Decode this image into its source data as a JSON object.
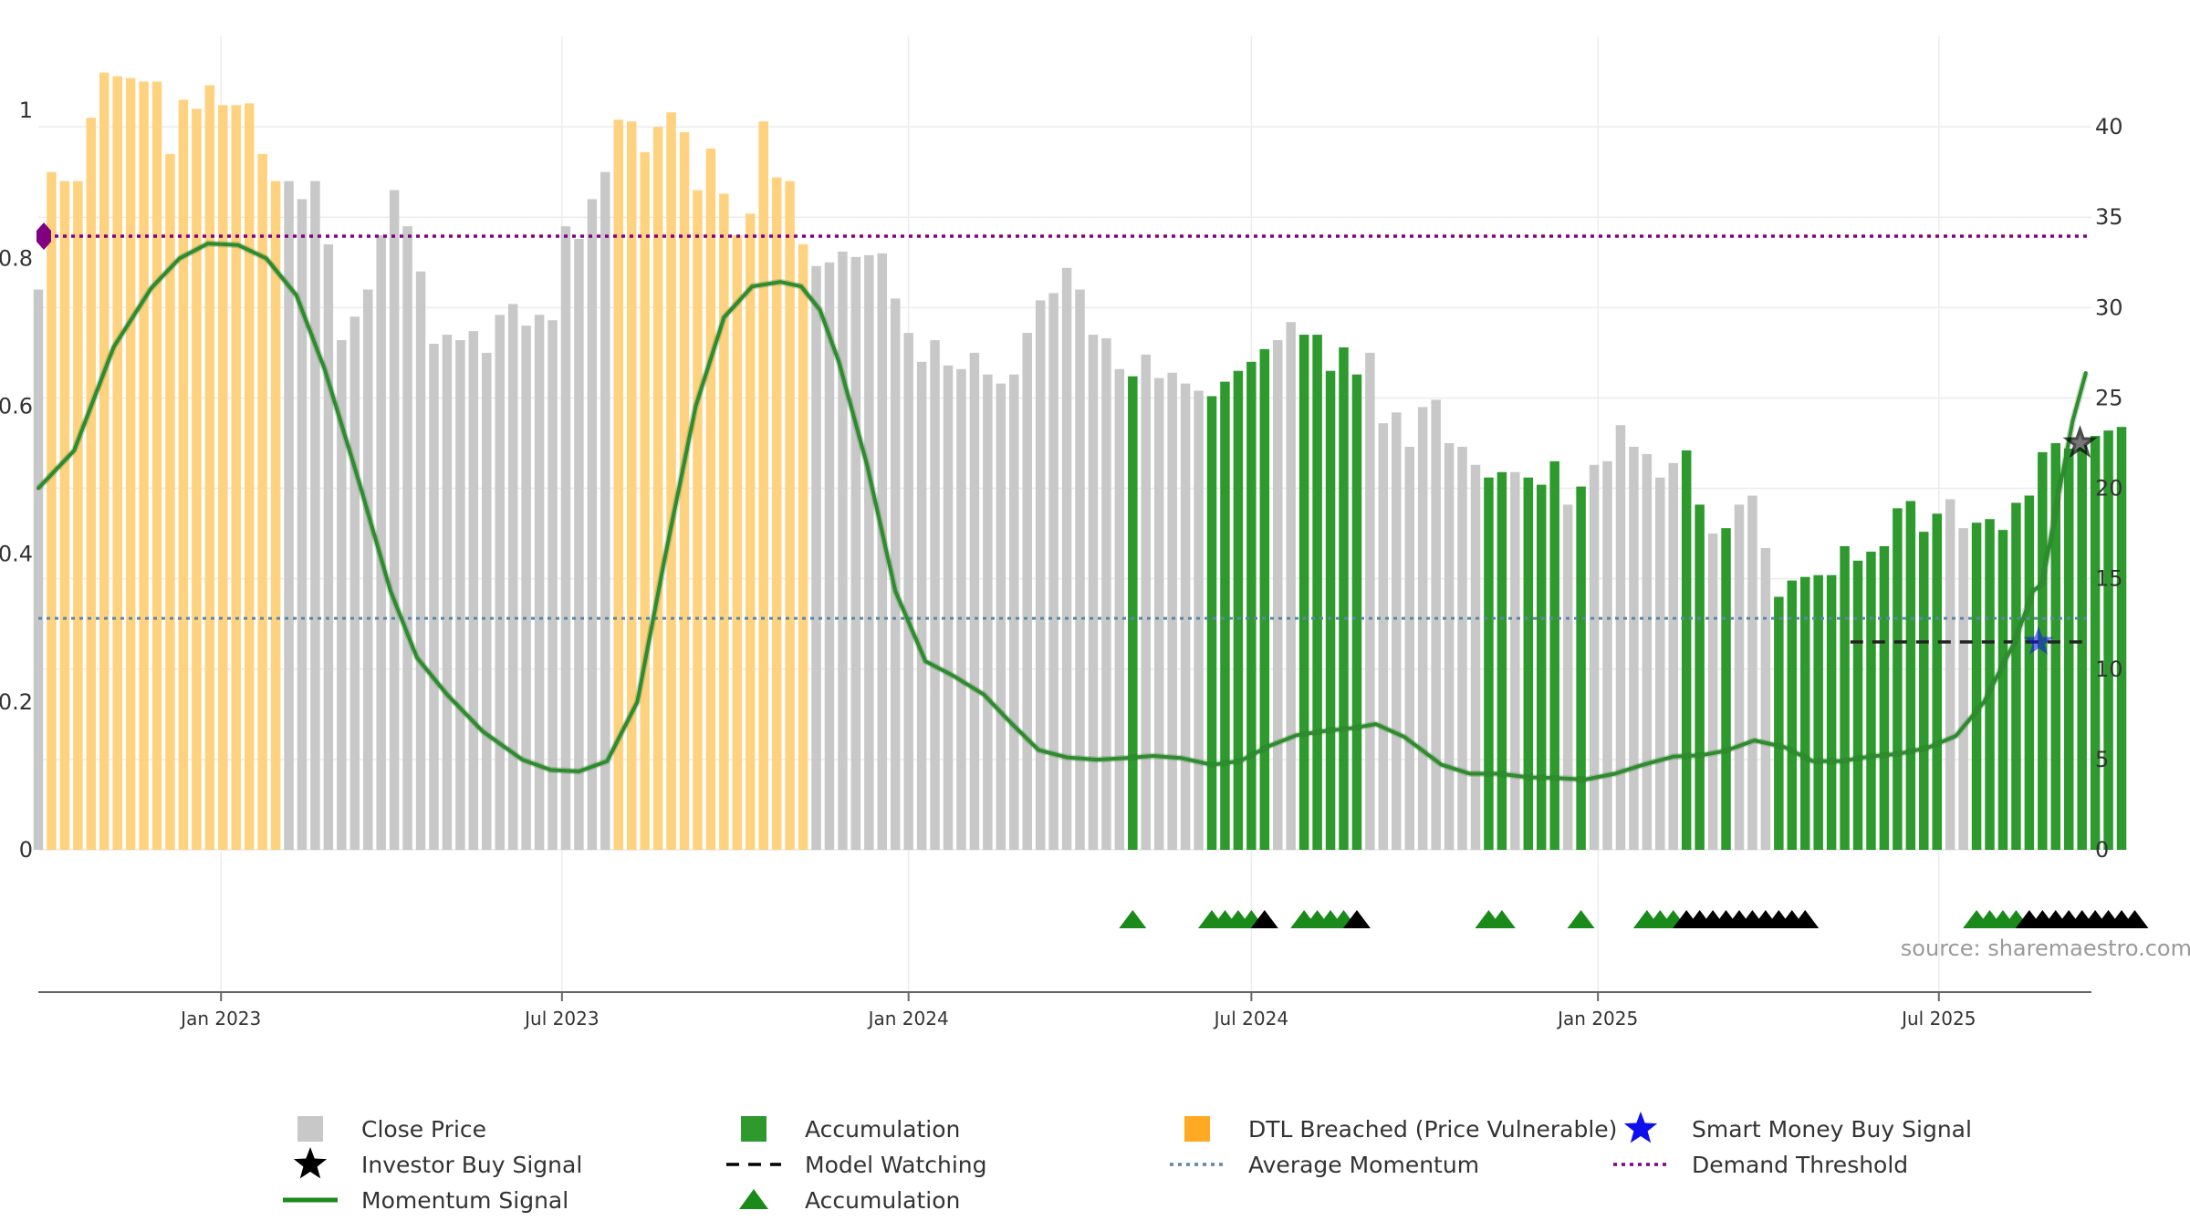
{
  "chart_data": {
    "type": "bar",
    "source": "source: sharemaestro.com",
    "left_axis": {
      "ticks": [
        0,
        0.2,
        0.4,
        0.6,
        0.8,
        1
      ],
      "tick_labels": [
        "0",
        "0.2",
        "0.4",
        "0.6",
        "0.8",
        "1"
      ],
      "range": [
        0,
        1.1
      ]
    },
    "right_axis": {
      "ticks": [
        0,
        5,
        10,
        15,
        20,
        25,
        30,
        35,
        40
      ],
      "tick_labels": [
        "0",
        "5",
        "10",
        "15",
        "20",
        "25",
        "30",
        "35",
        "40"
      ],
      "range": [
        0,
        45
      ]
    },
    "x_axis": {
      "start": "2022-09-26",
      "end": "2025-09-20",
      "tick_dates": [
        "2023-01-01",
        "2023-07-01",
        "2024-01-01",
        "2024-07-01",
        "2025-01-01",
        "2025-07-01"
      ],
      "tick_labels": [
        "Jan 2023",
        "Jul 2023",
        "Jan 2024",
        "Jul 2024",
        "Jan 2025",
        "Jul 2025"
      ]
    },
    "series": [
      {
        "name": "Close Price",
        "first_week": "2022-09-26",
        "interval_days": 7,
        "values": [
          31,
          37.5,
          37,
          37,
          40.5,
          43,
          42.8,
          42.7,
          42.5,
          42.5,
          38.5,
          41.5,
          41,
          42.3,
          41.2,
          41.2,
          41.3,
          38.5,
          37,
          37,
          36,
          37,
          33.5,
          28.2,
          29.5,
          31,
          34,
          36.5,
          34.5,
          32,
          28,
          28.5,
          28.2,
          28.7,
          27.5,
          29.6,
          30.2,
          29,
          29.6,
          29.3,
          34.5,
          33.8,
          36,
          37.5,
          40.4,
          40.3,
          38.6,
          40,
          40.8,
          39.7,
          36.5,
          38.8,
          36.3,
          34,
          35.2,
          40.3,
          37.2,
          37,
          33.5,
          32.3,
          32.5,
          33.1,
          32.8,
          32.9,
          33,
          30.5,
          28.6,
          27,
          28.2,
          26.8,
          26.6,
          27.5,
          26.3,
          25.8,
          26.3,
          28.6,
          30.4,
          30.8,
          32.2,
          31,
          28.5,
          28.3,
          26.6,
          26.2,
          27.4,
          26.1,
          26.4,
          25.8,
          25.4,
          25.1,
          25.9,
          26.5,
          27,
          27.7,
          28.2,
          29.2,
          28.5,
          28.5,
          26.5,
          27.8,
          26.3,
          27.5,
          23.6,
          24.2,
          22.3,
          24.5,
          24.9,
          22.5,
          22.3,
          21.3,
          20.6,
          20.9,
          20.9,
          20.6,
          20.2,
          21.5,
          19.1,
          20.1,
          21.3,
          21.5,
          23.5,
          22.3,
          21.9,
          20.6,
          21.4,
          22.1,
          19.1,
          17.5,
          17.8,
          19.1,
          19.6,
          16.7,
          14,
          14.9,
          15.1,
          15.2,
          15.2,
          16.8,
          16,
          16.5,
          16.8,
          18.9,
          19.3,
          17.6,
          18.6,
          19.4,
          17.8,
          18.1,
          18.3,
          17.7,
          19.2,
          19.6,
          22,
          22.5,
          22.2,
          22.4,
          22.9,
          23.2,
          23.4
        ]
      },
      {
        "name": "Accumulation",
        "weeks": [
          83,
          89,
          90,
          91,
          92,
          93,
          96,
          97,
          98,
          99,
          100,
          110,
          111,
          113,
          114,
          115,
          117,
          125,
          126,
          128,
          132,
          133,
          134,
          135,
          136,
          137,
          138,
          139,
          140,
          141,
          142,
          143,
          144,
          147,
          148,
          149,
          150,
          151,
          152,
          153,
          154,
          155,
          156,
          157,
          158,
          159
        ]
      },
      {
        "name": "DTL Breached (Price Vulnerable)",
        "weeks": [
          1,
          2,
          3,
          4,
          5,
          6,
          7,
          8,
          9,
          10,
          11,
          12,
          13,
          14,
          15,
          16,
          17,
          18,
          44,
          45,
          46,
          47,
          48,
          49,
          50,
          51,
          52,
          53,
          54,
          55,
          56,
          57,
          58
        ]
      },
      {
        "name": "Momentum Signal",
        "points": [
          [
            "2022-09-26",
            0.489
          ],
          [
            "2022-10-15",
            0.54
          ],
          [
            "2022-11-05",
            0.68
          ],
          [
            "2022-11-25",
            0.76
          ],
          [
            "2022-12-10",
            0.8
          ],
          [
            "2022-12-25",
            0.82
          ],
          [
            "2023-01-10",
            0.818
          ],
          [
            "2023-01-25",
            0.8
          ],
          [
            "2023-02-10",
            0.75
          ],
          [
            "2023-02-25",
            0.65
          ],
          [
            "2023-03-15",
            0.5
          ],
          [
            "2023-04-01",
            0.35
          ],
          [
            "2023-04-15",
            0.26
          ],
          [
            "2023-05-01",
            0.21
          ],
          [
            "2023-05-20",
            0.16
          ],
          [
            "2023-06-10",
            0.122
          ],
          [
            "2023-06-25",
            0.108
          ],
          [
            "2023-07-10",
            0.106
          ],
          [
            "2023-07-25",
            0.12
          ],
          [
            "2023-08-10",
            0.2
          ],
          [
            "2023-08-25",
            0.4
          ],
          [
            "2023-09-10",
            0.6
          ],
          [
            "2023-09-25",
            0.72
          ],
          [
            "2023-10-10",
            0.762
          ],
          [
            "2023-10-25",
            0.768
          ],
          [
            "2023-11-05",
            0.762
          ],
          [
            "2023-11-15",
            0.73
          ],
          [
            "2023-11-25",
            0.66
          ],
          [
            "2023-12-10",
            0.52
          ],
          [
            "2023-12-25",
            0.35
          ],
          [
            "2024-01-10",
            0.255
          ],
          [
            "2024-01-25",
            0.235
          ],
          [
            "2024-02-10",
            0.21
          ],
          [
            "2024-02-25",
            0.17
          ],
          [
            "2024-03-10",
            0.135
          ],
          [
            "2024-03-25",
            0.125
          ],
          [
            "2024-04-10",
            0.122
          ],
          [
            "2024-04-25",
            0.124
          ],
          [
            "2024-05-10",
            0.127
          ],
          [
            "2024-05-25",
            0.124
          ],
          [
            "2024-06-10",
            0.115
          ],
          [
            "2024-06-25",
            0.12
          ],
          [
            "2024-07-10",
            0.14
          ],
          [
            "2024-07-25",
            0.155
          ],
          [
            "2024-08-10",
            0.161
          ],
          [
            "2024-08-25",
            0.165
          ],
          [
            "2024-09-05",
            0.17
          ],
          [
            "2024-09-20",
            0.153
          ],
          [
            "2024-10-10",
            0.115
          ],
          [
            "2024-10-25",
            0.103
          ],
          [
            "2024-11-10",
            0.103
          ],
          [
            "2024-11-25",
            0.098
          ],
          [
            "2024-12-10",
            0.097
          ],
          [
            "2024-12-25",
            0.095
          ],
          [
            "2025-01-10",
            0.103
          ],
          [
            "2025-01-25",
            0.115
          ],
          [
            "2025-02-10",
            0.126
          ],
          [
            "2025-02-25",
            0.128
          ],
          [
            "2025-03-10",
            0.134
          ],
          [
            "2025-03-25",
            0.148
          ],
          [
            "2025-04-10",
            0.139
          ],
          [
            "2025-04-25",
            0.12
          ],
          [
            "2025-05-10",
            0.12
          ],
          [
            "2025-05-25",
            0.126
          ],
          [
            "2025-06-10",
            0.13
          ],
          [
            "2025-06-25",
            0.138
          ],
          [
            "2025-07-10",
            0.154
          ],
          [
            "2025-07-25",
            0.2
          ],
          [
            "2025-08-10",
            0.28
          ],
          [
            "2025-08-20",
            0.35
          ],
          [
            "2025-08-25",
            0.36
          ],
          [
            "2025-09-01",
            0.46
          ],
          [
            "2025-09-10",
            0.58
          ],
          [
            "2025-09-17",
            0.645
          ]
        ]
      },
      {
        "name": "Average Momentum",
        "value": 0.313
      },
      {
        "name": "Demand Threshold",
        "value": 0.83
      },
      {
        "name": "Model Watching",
        "value": 11.5,
        "from": "2025-05-15",
        "to": "2025-09-17"
      },
      {
        "name": "Smart Money Buy Signal",
        "date": "2025-08-20",
        "value": 11.5
      },
      {
        "name": "Investor Buy Signal",
        "date": "2025-09-12",
        "value": 22.5
      },
      {
        "name": "Accumulation",
        "marker": "triangle",
        "green_weeks": [
          83,
          89,
          90,
          91,
          92,
          96,
          97,
          98,
          99,
          110,
          111,
          117,
          122,
          123,
          124,
          147,
          148,
          149,
          150
        ],
        "black_weeks": [
          93,
          100,
          125,
          126,
          127,
          128,
          129,
          130,
          131,
          132,
          133,
          134,
          151,
          152,
          153,
          154,
          155,
          156,
          157,
          158,
          159
        ]
      }
    ],
    "start_marker": {
      "date": "2022-09-26",
      "value": 0.83
    },
    "legend": [
      [
        "Close Price",
        "Accumulation",
        "DTL Breached (Price Vulnerable)",
        "Smart Money Buy Signal"
      ],
      [
        "Investor Buy Signal",
        "Model Watching",
        "Average Momentum",
        "Demand Threshold"
      ],
      [
        "Momentum Signal",
        "Accumulation"
      ]
    ],
    "colors": {
      "close": "#c8c8c8",
      "accumulation": "#2e9a2e",
      "dtl": "#ffd27f",
      "momentum": "#2e8b2e",
      "avg": "#5b86a8",
      "threshold": "#800080",
      "smart_money": "#1010ee",
      "triangle_green": "#1a8a1a",
      "triangle_black": "#000000"
    }
  }
}
